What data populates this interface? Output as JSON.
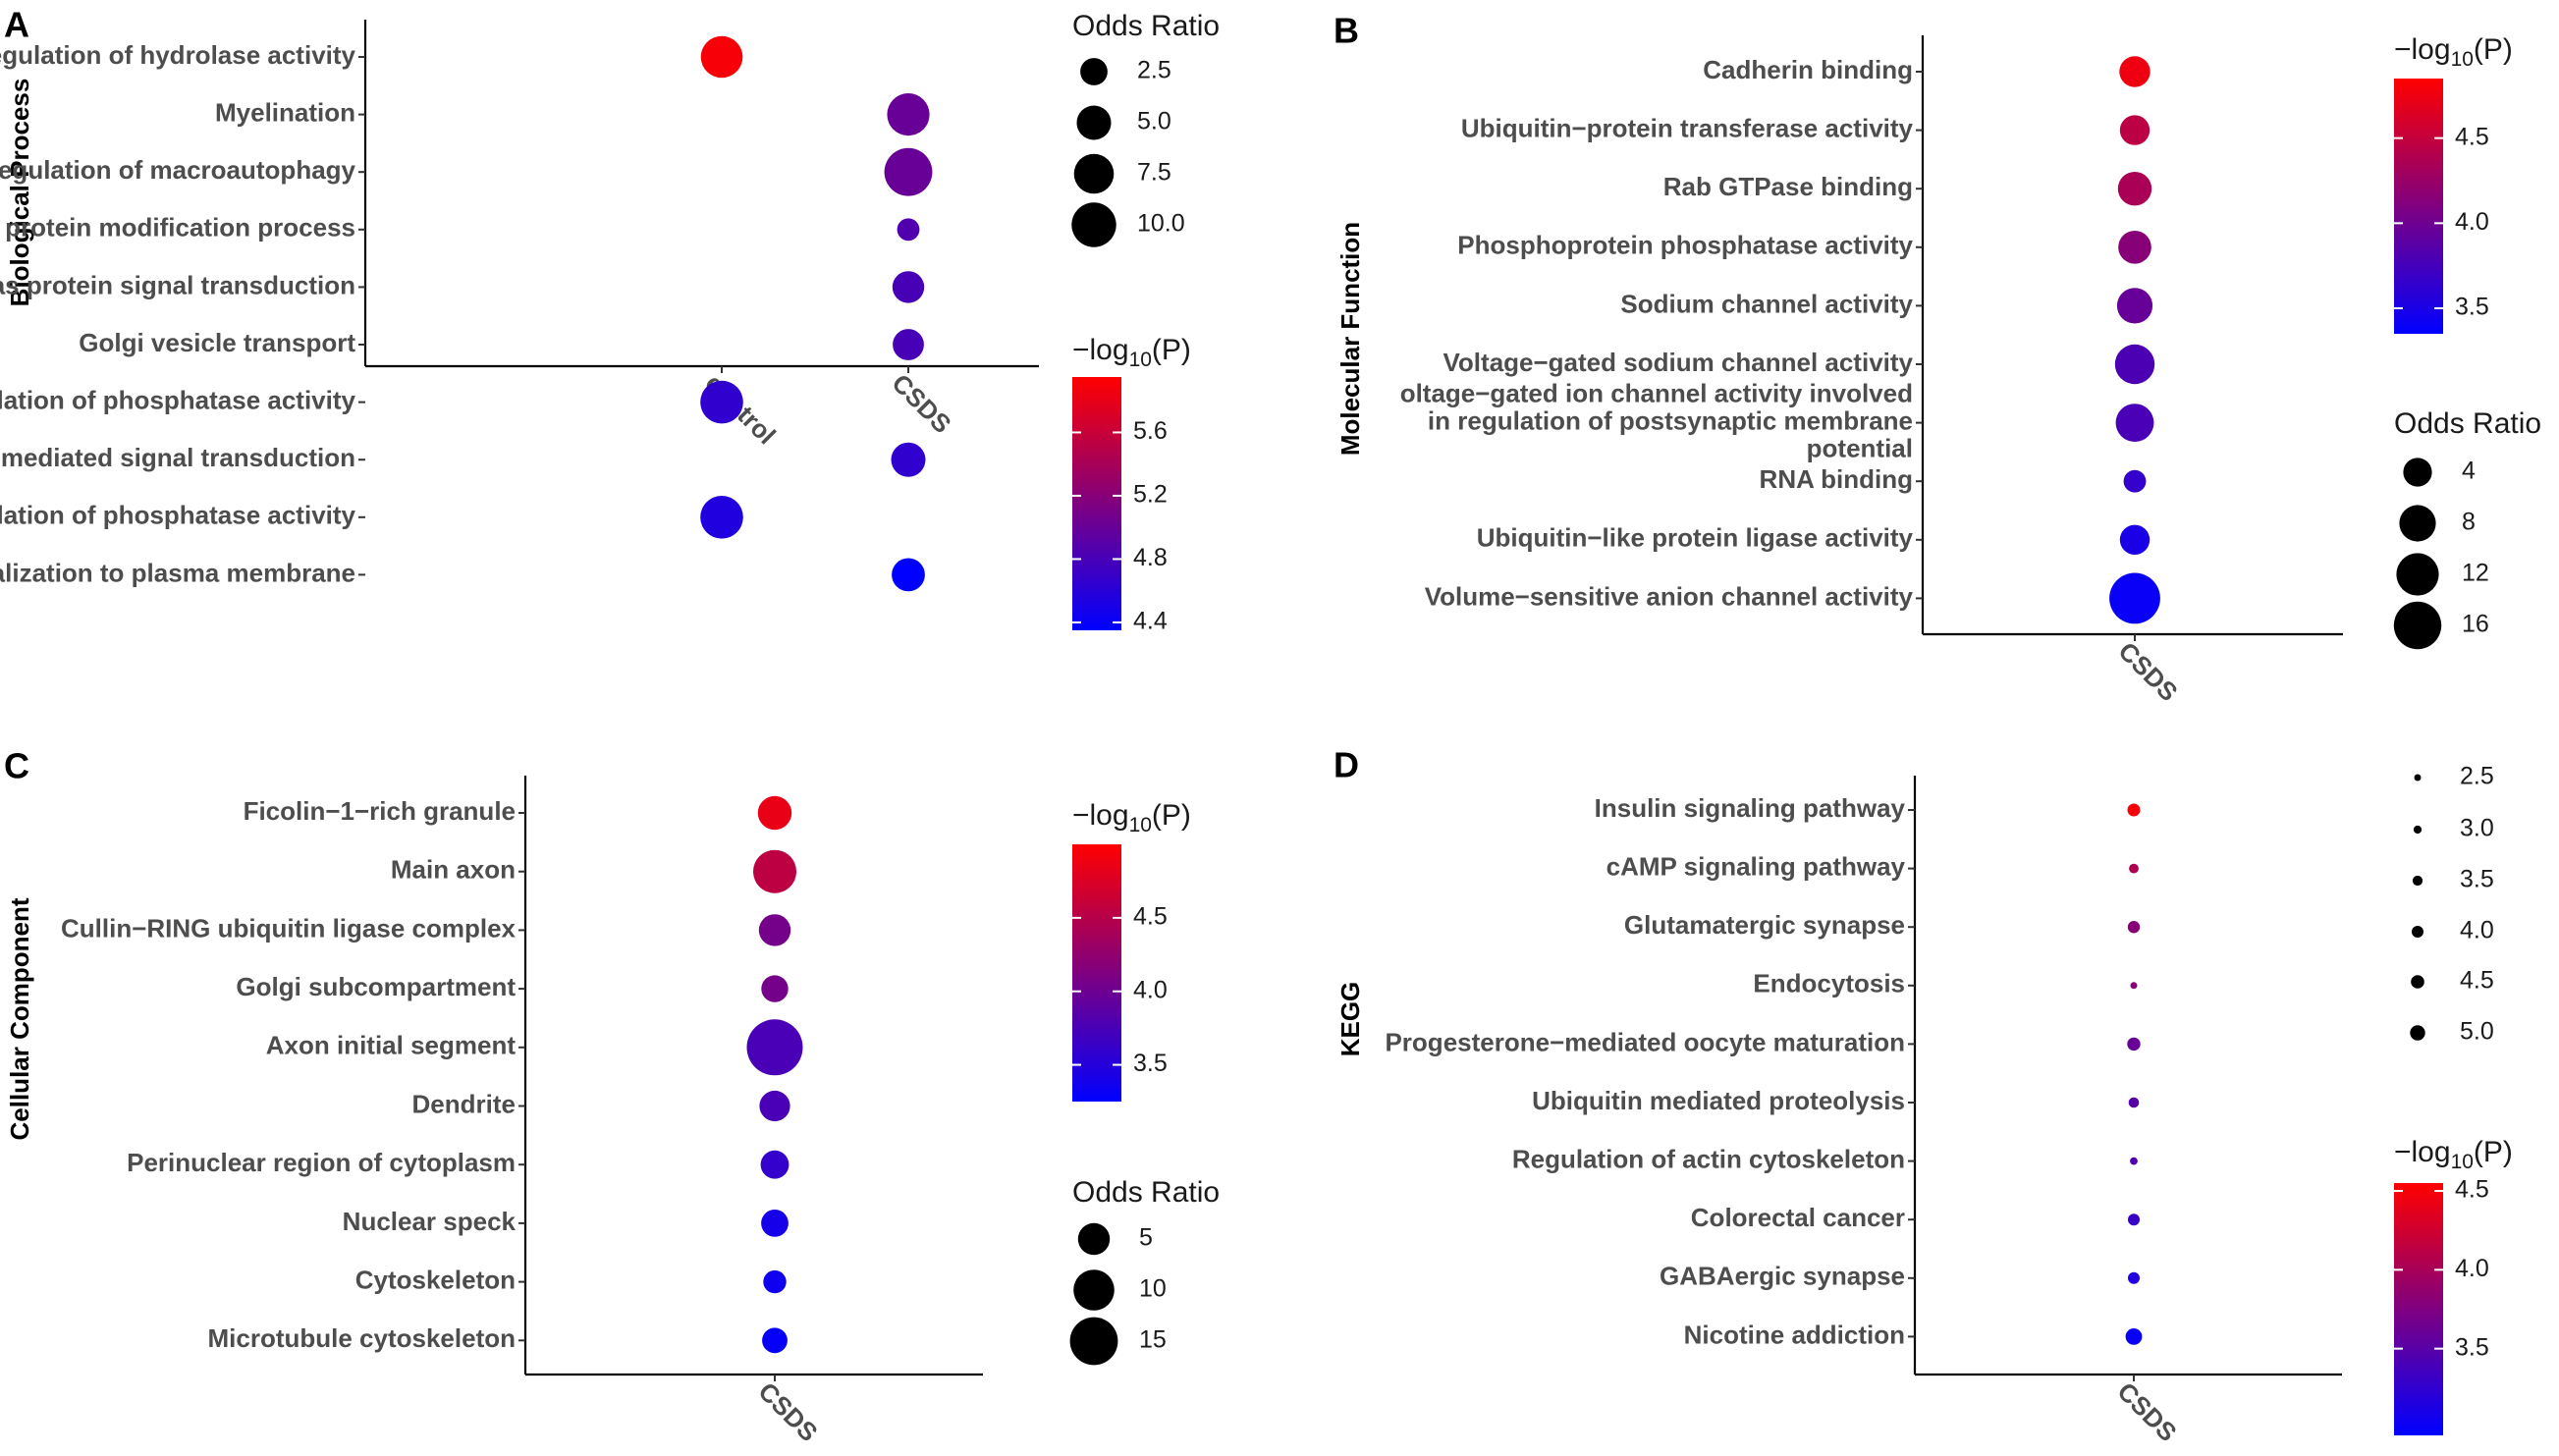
{
  "chart_data": [
    {
      "panel": "A",
      "type": "scatter",
      "ylabel": "Biological Process",
      "x_categories": [
        "control",
        "CSDS"
      ],
      "y_categories": [
        "Negative regulation of hydrolase activity",
        "Myelination",
        "Negative regulation of macroautophagy",
        "Cellular protein modification process",
        "Ras protein signal transduction",
        "Golgi vesicle transport",
        "Negative regulation of phosphatase activity",
        "Small GTPase mediated signal transduction",
        "Regulation of phosphatase activity",
        "Protein localization to plasma membrane"
      ],
      "points": [
        {
          "x": "control",
          "y": "Negative regulation of hydrolase activity",
          "odds_ratio": 8.5,
          "neglog10p": 5.9
        },
        {
          "x": "CSDS",
          "y": "Myelination",
          "odds_ratio": 8.8,
          "neglog10p": 5.0
        },
        {
          "x": "CSDS",
          "y": "Negative regulation of macroautophagy",
          "odds_ratio": 12.0,
          "neglog10p": 5.0
        },
        {
          "x": "CSDS",
          "y": "Cellular protein modification process",
          "odds_ratio": 1.3,
          "neglog10p": 4.85
        },
        {
          "x": "CSDS",
          "y": "Ras protein signal transduction",
          "odds_ratio": 4.0,
          "neglog10p": 4.8
        },
        {
          "x": "CSDS",
          "y": "Golgi vesicle transport",
          "odds_ratio": 3.8,
          "neglog10p": 4.8
        },
        {
          "x": "control",
          "y": "Negative regulation of phosphatase activity",
          "odds_ratio": 9.0,
          "neglog10p": 4.65
        },
        {
          "x": "CSDS",
          "y": "Small GTPase mediated signal transduction",
          "odds_ratio": 5.0,
          "neglog10p": 4.65
        },
        {
          "x": "control",
          "y": "Regulation of phosphatase activity",
          "odds_ratio": 9.0,
          "neglog10p": 4.55
        },
        {
          "x": "CSDS",
          "y": "Protein localization to plasma membrane",
          "odds_ratio": 4.5,
          "neglog10p": 4.35
        }
      ],
      "size_legend": {
        "title": "Odds Ratio",
        "breaks": [
          2.5,
          5.0,
          7.5,
          10.0
        ],
        "labels": [
          "2.5",
          "5.0",
          "7.5",
          "10.0"
        ]
      },
      "color_legend": {
        "title_prefix": "−log",
        "title_sub": "10",
        "title_suffix": "(P)",
        "min": 4.35,
        "max": 5.95,
        "ticks": [
          4.4,
          4.8,
          5.2,
          5.6
        ],
        "labels": [
          "4.4",
          "4.8",
          "5.2",
          "5.6"
        ]
      }
    },
    {
      "panel": "B",
      "type": "scatter",
      "ylabel": "Molecular Function",
      "x_categories": [
        "CSDS"
      ],
      "y_categories": [
        "Cadherin binding",
        "Ubiquitin−protein transferase activity",
        "Rab GTPase binding",
        "Phosphoprotein phosphatase activity",
        "Sodium channel activity",
        "Voltage−gated sodium channel activity",
        "Voltage−gated ion channel activity involved in regulation of postsynaptic membrane potential",
        "RNA binding",
        "Ubiquitin−like protein ligase activity",
        "Volume−sensitive anion channel activity"
      ],
      "y_label_lines": [
        [
          "Cadherin binding"
        ],
        [
          "Ubiquitin−protein transferase activity"
        ],
        [
          "Rab GTPase binding"
        ],
        [
          "Phosphoprotein phosphatase activity"
        ],
        [
          "Sodium channel activity"
        ],
        [
          "Voltage−gated sodium channel activity"
        ],
        [
          "oltage−gated ion channel activity involved",
          "in regulation of postsynaptic membrane",
          "potential"
        ],
        [
          "RNA binding"
        ],
        [
          "Ubiquitin−like protein ligase activity"
        ],
        [
          "Volume−sensitive anion channel activity"
        ]
      ],
      "points": [
        {
          "x": "CSDS",
          "y": "Cadherin binding",
          "odds_ratio": 5.0,
          "neglog10p": 4.75
        },
        {
          "x": "CSDS",
          "y": "Ubiquitin−protein transferase activity",
          "odds_ratio": 4.5,
          "neglog10p": 4.45
        },
        {
          "x": "CSDS",
          "y": "Rab GTPase binding",
          "odds_ratio": 6.5,
          "neglog10p": 4.35
        },
        {
          "x": "CSDS",
          "y": "Phosphoprotein phosphatase activity",
          "odds_ratio": 6.0,
          "neglog10p": 4.15
        },
        {
          "x": "CSDS",
          "y": "Sodium channel activity",
          "odds_ratio": 7.5,
          "neglog10p": 3.95
        },
        {
          "x": "CSDS",
          "y": "Voltage−gated sodium channel activity",
          "odds_ratio": 10.0,
          "neglog10p": 3.8
        },
        {
          "x": "CSDS",
          "y": "Voltage−gated ion channel activity involved in regulation of postsynaptic membrane potential",
          "odds_ratio": 9.0,
          "neglog10p": 3.78
        },
        {
          "x": "CSDS",
          "y": "RNA binding",
          "odds_ratio": 1.8,
          "neglog10p": 3.65
        },
        {
          "x": "CSDS",
          "y": "Ubiquitin−like protein ligase activity",
          "odds_ratio": 4.5,
          "neglog10p": 3.5
        },
        {
          "x": "CSDS",
          "y": "Volume−sensitive anion channel activity",
          "odds_ratio": 19.0,
          "neglog10p": 3.4
        }
      ],
      "size_legend": {
        "title": "Odds Ratio",
        "breaks": [
          4,
          8,
          12,
          16
        ],
        "labels": [
          "4",
          "8",
          "12",
          "16"
        ]
      },
      "color_legend": {
        "title_prefix": "−log",
        "title_sub": "10",
        "title_suffix": "(P)",
        "min": 3.35,
        "max": 4.85,
        "ticks": [
          3.5,
          4.0,
          4.5
        ],
        "labels": [
          "3.5",
          "4.0",
          "4.5"
        ]
      }
    },
    {
      "panel": "C",
      "type": "scatter",
      "ylabel": "Cellular Component",
      "x_categories": [
        "CSDS"
      ],
      "y_categories": [
        "Ficolin−1−rich granule",
        "Main axon",
        "Cullin−RING ubiquitin ligase complex",
        "Golgi subcompartment",
        "Axon initial segment",
        "Dendrite",
        "Perinuclear region of cytoplasm",
        "Nuclear speck",
        "Cytoskeleton",
        "Microtubule cytoskeleton"
      ],
      "points": [
        {
          "x": "CSDS",
          "y": "Ficolin−1−rich granule",
          "odds_ratio": 6.0,
          "neglog10p": 4.85
        },
        {
          "x": "CSDS",
          "y": "Main axon",
          "odds_ratio": 11.5,
          "neglog10p": 4.55
        },
        {
          "x": "CSDS",
          "y": "Cullin−RING ubiquitin ligase complex",
          "odds_ratio": 5.0,
          "neglog10p": 4.05
        },
        {
          "x": "CSDS",
          "y": "Golgi subcompartment",
          "odds_ratio": 3.0,
          "neglog10p": 4.05
        },
        {
          "x": "CSDS",
          "y": "Axon initial segment",
          "odds_ratio": 22.0,
          "neglog10p": 3.75
        },
        {
          "x": "CSDS",
          "y": "Dendrite",
          "odds_ratio": 4.5,
          "neglog10p": 3.75
        },
        {
          "x": "CSDS",
          "y": "Perinuclear region of cytoplasm",
          "odds_ratio": 3.5,
          "neglog10p": 3.6
        },
        {
          "x": "CSDS",
          "y": "Nuclear speck",
          "odds_ratio": 3.2,
          "neglog10p": 3.4
        },
        {
          "x": "CSDS",
          "y": "Cytoskeleton",
          "odds_ratio": 1.8,
          "neglog10p": 3.35
        },
        {
          "x": "CSDS",
          "y": "Microtubule cytoskeleton",
          "odds_ratio": 2.5,
          "neglog10p": 3.3
        }
      ],
      "size_legend": {
        "title": "Odds Ratio",
        "breaks": [
          5,
          10,
          15
        ],
        "labels": [
          "5",
          "10",
          "15"
        ]
      },
      "color_legend": {
        "title_prefix": "−log",
        "title_sub": "10",
        "title_suffix": "(P)",
        "min": 3.25,
        "max": 5.0,
        "ticks": [
          3.5,
          4.0,
          4.5
        ],
        "labels": [
          "3.5",
          "4.0",
          "4.5"
        ]
      }
    },
    {
      "panel": "D",
      "type": "scatter",
      "ylabel": "KEGG",
      "x_categories": [
        "CSDS"
      ],
      "y_categories": [
        "Insulin signaling pathway",
        "cAMP signaling pathway",
        "Glutamatergic synapse",
        "Endocytosis",
        "Progesterone−mediated oocyte maturation",
        "Ubiquitin mediated proteolysis",
        "Regulation of actin cytoskeleton",
        "Colorectal cancer",
        "GABAergic synapse",
        "Nicotine addiction"
      ],
      "points": [
        {
          "x": "CSDS",
          "y": "Insulin signaling pathway",
          "odds_ratio": 4.3,
          "neglog10p": 4.5
        },
        {
          "x": "CSDS",
          "y": "cAMP signaling pathway",
          "odds_ratio": 3.4,
          "neglog10p": 4.05
        },
        {
          "x": "CSDS",
          "y": "Glutamatergic synapse",
          "odds_ratio": 4.1,
          "neglog10p": 3.8
        },
        {
          "x": "CSDS",
          "y": "Endocytosis",
          "odds_ratio": 2.3,
          "neglog10p": 3.8
        },
        {
          "x": "CSDS",
          "y": "Progesterone−mediated oocyte maturation",
          "odds_ratio": 4.4,
          "neglog10p": 3.6
        },
        {
          "x": "CSDS",
          "y": "Ubiquitin mediated proteolysis",
          "odds_ratio": 3.6,
          "neglog10p": 3.5
        },
        {
          "x": "CSDS",
          "y": "Regulation of actin cytoskeleton",
          "odds_ratio": 2.9,
          "neglog10p": 3.45
        },
        {
          "x": "CSDS",
          "y": "Colorectal cancer",
          "odds_ratio": 4.0,
          "neglog10p": 3.3
        },
        {
          "x": "CSDS",
          "y": "GABAergic synapse",
          "odds_ratio": 4.0,
          "neglog10p": 3.15
        },
        {
          "x": "CSDS",
          "y": "Nicotine addiction",
          "odds_ratio": 5.5,
          "neglog10p": 3.0
        }
      ],
      "size_legend": {
        "title": "",
        "breaks": [
          2.5,
          3.0,
          3.5,
          4.0,
          4.5,
          5.0
        ],
        "labels": [
          "2.5",
          "3.0",
          "3.5",
          "4.0",
          "4.5",
          "5.0"
        ]
      },
      "color_legend": {
        "title_prefix": "−log",
        "title_sub": "10",
        "title_suffix": "(P)",
        "min": 2.95,
        "max": 4.55,
        "ticks": [
          3.5,
          4.0,
          4.5
        ],
        "labels": [
          "3.5",
          "4.0",
          "4.5"
        ]
      }
    }
  ]
}
